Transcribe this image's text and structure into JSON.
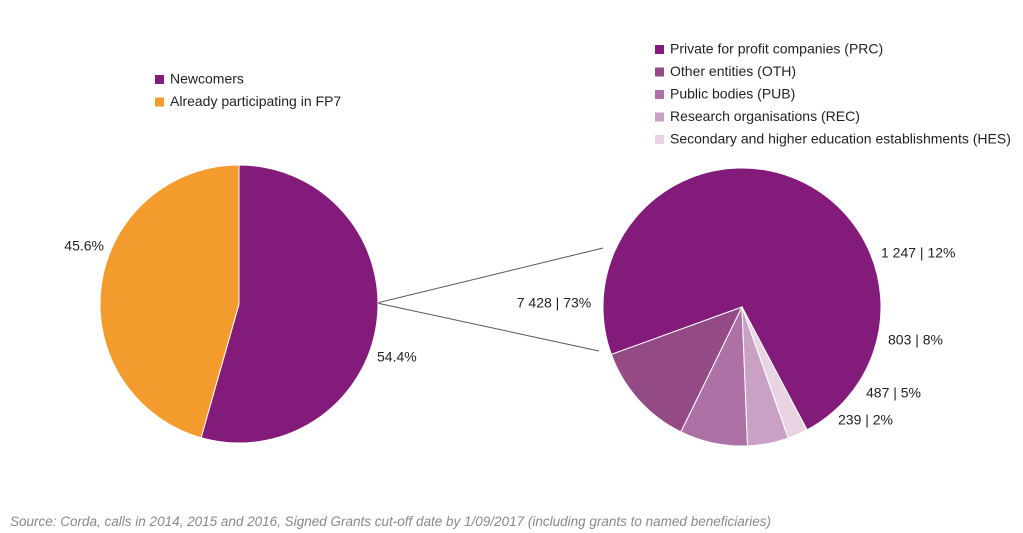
{
  "chart_data": [
    {
      "type": "pie",
      "title": "",
      "series": [
        {
          "label": "Newcomers",
          "value": 54.4,
          "value_label": "54.4%",
          "color": "#821B7A"
        },
        {
          "label": "Already participating in FP7",
          "value": 45.6,
          "value_label": "45.6%",
          "color": "#F49B2E"
        }
      ],
      "legend_position": "top-left"
    },
    {
      "type": "pie",
      "title": "",
      "series": [
        {
          "label": "Private for profit companies (PRC)",
          "value": 7428,
          "value_label": "7 428 | 73%",
          "color": "#821B7A"
        },
        {
          "label": "Other entities (OTH)",
          "value": 1247,
          "value_label": "1 247 | 12%",
          "color": "#944B85"
        },
        {
          "label": "Public bodies (PUB)",
          "value": 803,
          "value_label": "803 | 8%",
          "color": "#AE71A6"
        },
        {
          "label": "Research organisations (REC)",
          "value": 487,
          "value_label": "487 | 5%",
          "color": "#C9A1C4"
        },
        {
          "label": "Secondary and higher education establishments (HES)",
          "value": 239,
          "value_label": "239 | 2%",
          "color": "#E8D4E3"
        }
      ],
      "legend_position": "top-right",
      "expands_slice_of_first_chart": "Newcomers"
    }
  ],
  "footnote": "Source: Corda, calls in 2014, 2015 and 2016, Signed Grants cut-off date by 1/09/2017 (including grants to named beneficiaries)"
}
